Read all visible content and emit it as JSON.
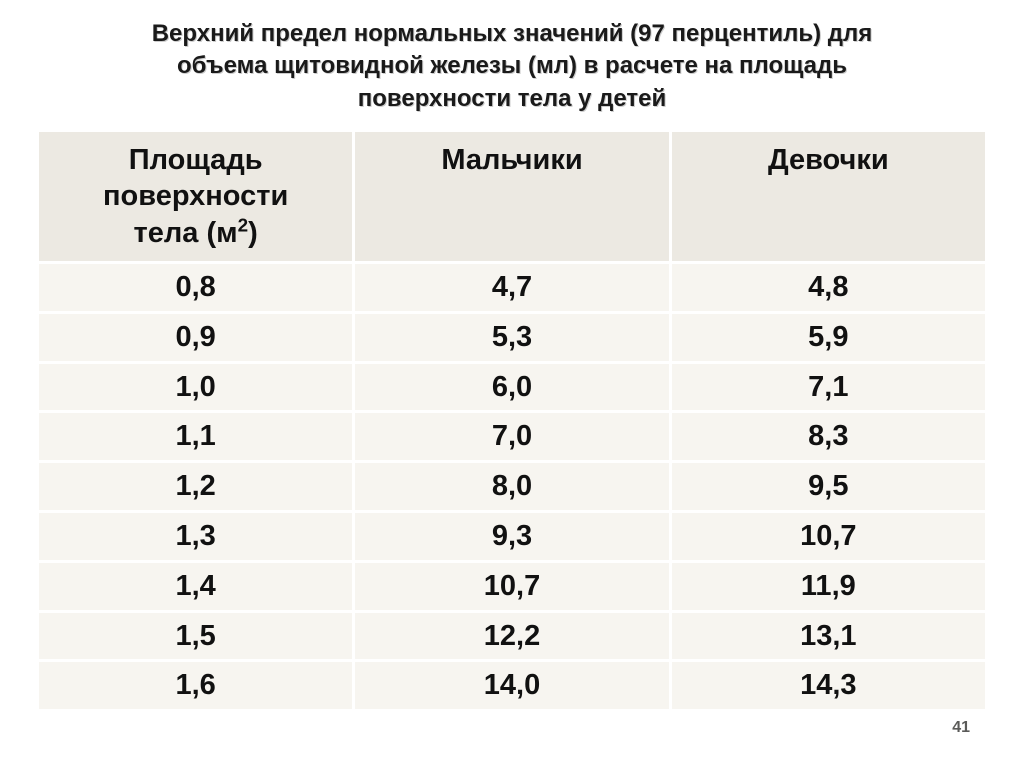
{
  "title_line1": "Верхний предел нормальных значений (97 перцентиль) для",
  "title_line2": "объема щитовидной железы (мл) в расчете на площадь",
  "title_line3": "поверхности тела у детей",
  "page_number": "41",
  "table": {
    "type": "table",
    "header_bg": "#ece9e2",
    "cell_bg": "#f7f5f0",
    "border_color": "#ffffff",
    "text_color": "#111111",
    "font_size_header": 29,
    "font_size_cell": 29,
    "columns": [
      {
        "label_line1": "Площадь",
        "label_line2": "поверхности",
        "label_line3": "тела (м",
        "label_sup": "2",
        "label_after": ")"
      },
      {
        "label": "Мальчики"
      },
      {
        "label": "Девочки"
      }
    ],
    "rows": [
      {
        "bsa": "0,8",
        "boys": "4,7",
        "girls": "4,8"
      },
      {
        "bsa": "0,9",
        "boys": "5,3",
        "girls": "5,9"
      },
      {
        "bsa": "1,0",
        "boys": "6,0",
        "girls": "7,1"
      },
      {
        "bsa": "1,1",
        "boys": "7,0",
        "girls": "8,3"
      },
      {
        "bsa": "1,2",
        "boys": "8,0",
        "girls": "9,5"
      },
      {
        "bsa": "1,3",
        "boys": "9,3",
        "girls": "10,7"
      },
      {
        "bsa": "1,4",
        "boys": "10,7",
        "girls": "11,9"
      },
      {
        "bsa": "1,5",
        "boys": "12,2",
        "girls": "13,1"
      },
      {
        "bsa": "1,6",
        "boys": "14,0",
        "girls": "14,3"
      }
    ]
  }
}
